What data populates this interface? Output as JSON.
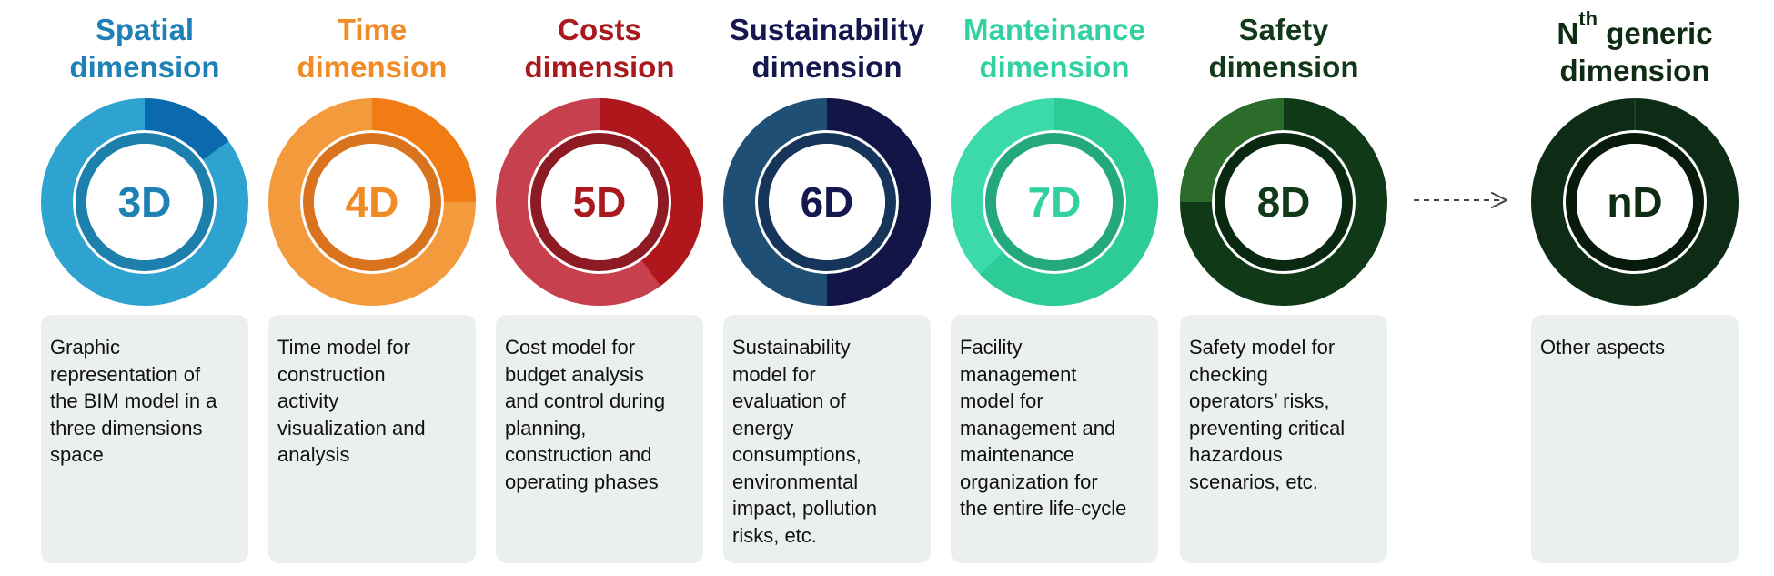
{
  "colors": {
    "card_bg": "#eceff0",
    "card_text": "#111111",
    "arrow": "#444444"
  },
  "dimensions": [
    {
      "id": "3d",
      "title_lines": [
        "Spatial",
        "dimension"
      ],
      "label": "3D",
      "description_lines": [
        "Graphic",
        "representation of",
        "the BIM model in a",
        "three dimensions",
        "space"
      ],
      "colors": {
        "title": "#1f80b5",
        "ring_main": "#2fa3cf",
        "ring_accent": "#0a6aad",
        "ring_inner": "#1d7fab",
        "label": "#1f80b5"
      }
    },
    {
      "id": "4d",
      "title_lines": [
        "Time",
        "dimension"
      ],
      "label": "4D",
      "description_lines": [
        "Time model for",
        "construction",
        "activity",
        "visualization and",
        "analysis"
      ],
      "colors": {
        "title": "#f08b26",
        "ring_main": "#f39a3c",
        "ring_accent": "#f27c14",
        "ring_inner": "#d9731e",
        "label": "#f08b26"
      }
    },
    {
      "id": "5d",
      "title_lines": [
        "Costs",
        "dimension"
      ],
      "label": "5D",
      "description_lines": [
        "Cost model for",
        "budget analysis",
        "and control during",
        "planning,",
        "construction and",
        "operating phases"
      ],
      "colors": {
        "title": "#a9191e",
        "ring_main": "#c6404d",
        "ring_accent": "#b0171c",
        "ring_inner": "#8e1a23",
        "label": "#a9191e"
      }
    },
    {
      "id": "6d",
      "title_lines": [
        "Sustainability",
        "dimension"
      ],
      "label": "6D",
      "description_lines": [
        "Sustainability",
        "model for",
        "evaluation of",
        "energy",
        "consumptions,",
        "environmental",
        "impact, pollution",
        "risks, etc."
      ],
      "colors": {
        "title": "#14184f",
        "ring_main": "#1f4f74",
        "ring_accent": "#121546",
        "ring_inner": "#17355a",
        "label": "#14184f"
      }
    },
    {
      "id": "7d",
      "title_lines": [
        "Manteinance",
        "dimension"
      ],
      "label": "7D",
      "description_lines": [
        "Facility",
        "management",
        "model for",
        "management and",
        "maintenance",
        "organization for",
        "the entire life-cycle"
      ],
      "colors": {
        "title": "#33d1a1",
        "ring_main": "#3cd9ab",
        "ring_accent": "#2ccb97",
        "ring_inner": "#23a97d",
        "label": "#33d1a1"
      }
    },
    {
      "id": "8d",
      "title_lines": [
        "Safety",
        "dimension"
      ],
      "label": "8D",
      "description_lines": [
        "Safety model for",
        "checking",
        "operators’ risks,",
        "preventing critical",
        "hazardous",
        "scenarios, etc."
      ],
      "colors": {
        "title": "#12391a",
        "ring_main": "#0f3917",
        "ring_accent": "#2b6c2a",
        "ring_inner": "#0a2910",
        "label": "#12391a"
      }
    },
    {
      "id": "nd",
      "title_lines": [
        "N",
        "generic",
        "dimension"
      ],
      "title_superscript": "th",
      "label": "nD",
      "description_lines": [
        "Other aspects"
      ],
      "colors": {
        "title": "#0e2c14",
        "ring_main": "#0e2c15",
        "ring_accent": "#103018",
        "ring_inner": "#071a0b",
        "label": "#0e2c14"
      }
    }
  ]
}
